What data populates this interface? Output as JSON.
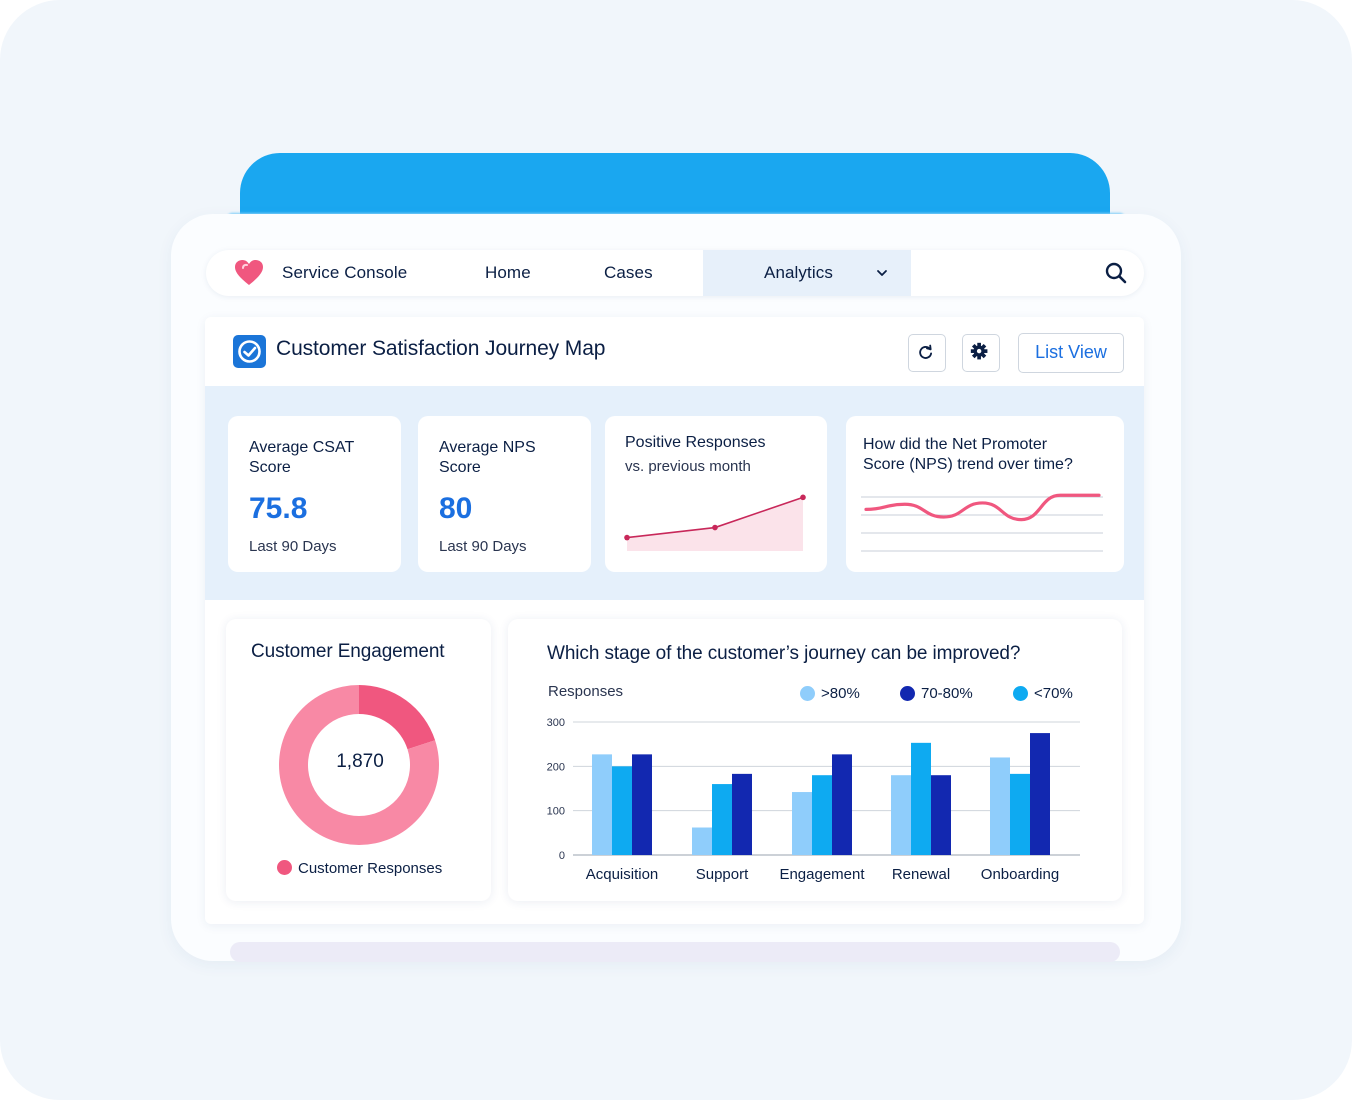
{
  "nav": {
    "brand": "Service Console",
    "home": "Home",
    "cases": "Cases",
    "analytics": "Analytics"
  },
  "header": {
    "title": "Customer Satisfaction Journey Map",
    "list_view": "List View"
  },
  "kpis": [
    {
      "label_line1": "Average CSAT",
      "label_line2": "Score",
      "value": "75.8",
      "foot": "Last 90 Days"
    },
    {
      "label_line1": "Average NPS",
      "label_line2": "Score",
      "value": "80",
      "foot": "Last 90 Days"
    }
  ],
  "positive": {
    "title": "Positive Responses",
    "subtitle": "vs. previous month"
  },
  "nps_trend": {
    "title_line1": "How did the Net Promoter",
    "title_line2": "Score (NPS) trend over time?"
  },
  "engagement": {
    "title": "Customer Engagement",
    "center_value": "1,870",
    "legend": "Customer Responses"
  },
  "journey": {
    "title": "Which stage of the customer’s journey can be improved?",
    "y_label": "Responses",
    "legend": [
      ">80%",
      "70-80%",
      "<70%"
    ]
  },
  "colors": {
    "accent_blue": "#1b6fe0",
    "pink": "#f0577f",
    "pink_light": "#f889a5",
    "bar_light": "#8fcdfb",
    "bar_dark": "#1228b0",
    "bar_mid": "#0eaaf1"
  },
  "icons": {
    "logo": "heart-icon",
    "search": "search-icon",
    "refresh": "refresh-icon",
    "settings": "gear-icon",
    "dashboard": "gauge-icon",
    "dropdown": "chevron-down-icon"
  },
  "chart_data": [
    {
      "type": "line",
      "title": "Positive Responses",
      "subtitle": "vs. previous month",
      "series": [
        {
          "values": [
            1,
            1.3,
            2.2
          ]
        }
      ]
    },
    {
      "type": "line",
      "title": "How did the Net Promoter Score (NPS) trend over time?",
      "series": [
        {
          "values": [
            3.8,
            4.2,
            3.2,
            4.3,
            3.0,
            4.9,
            4.9
          ]
        }
      ],
      "grid": true
    },
    {
      "type": "pie",
      "title": "Customer Engagement",
      "center_label": "1,870",
      "legend": [
        "Customer Responses"
      ],
      "values": [
        20,
        80
      ]
    },
    {
      "type": "bar",
      "title": "Which stage of the customer’s journey can be improved?",
      "ylabel": "Responses",
      "ylim": [
        0,
        300
      ],
      "yticks": [
        0,
        100,
        200,
        300
      ],
      "categories": [
        "Acquisition",
        "Support",
        "Engagement",
        "Renewal",
        "Onboarding"
      ],
      "series": [
        {
          "name": ">80%",
          "values": [
            227,
            62,
            142,
            180,
            220
          ]
        },
        {
          "name": "<70%",
          "values": [
            200,
            160,
            180,
            253,
            183
          ]
        },
        {
          "name": "70-80%",
          "values": [
            227,
            183,
            227,
            180,
            275
          ]
        }
      ],
      "legend_position": "top-right",
      "grid": true
    }
  ]
}
